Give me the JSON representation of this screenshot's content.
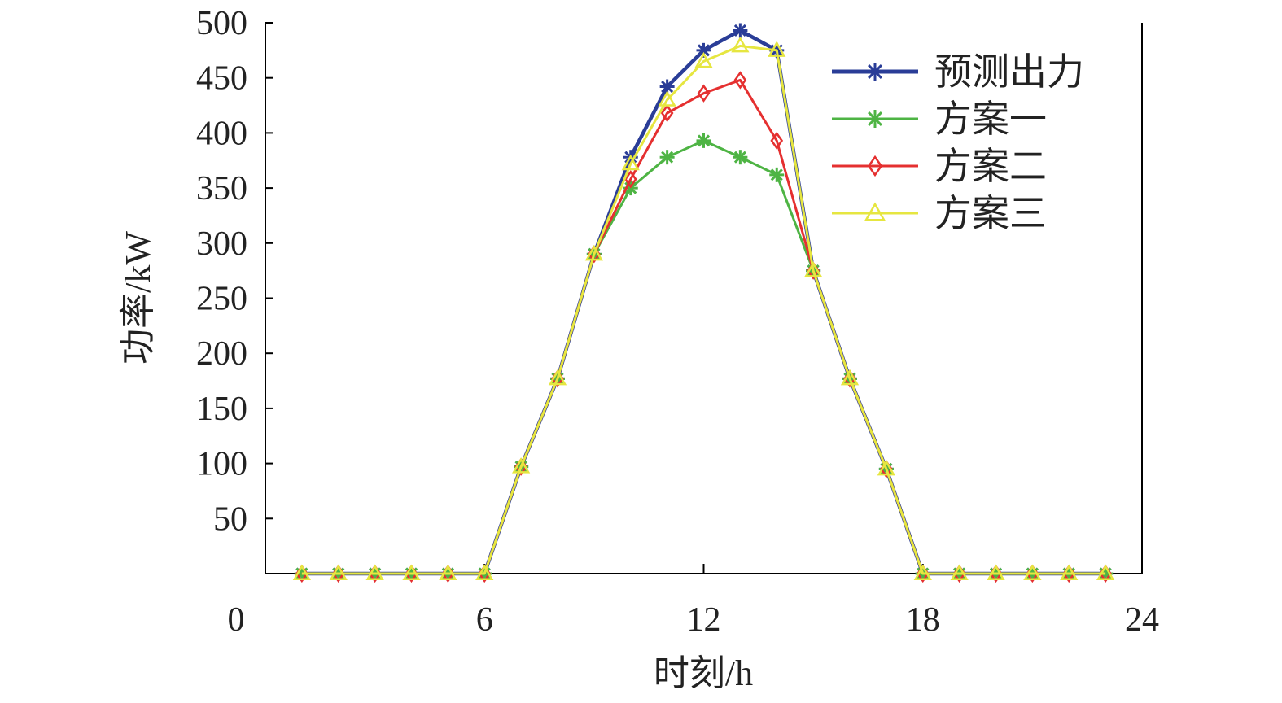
{
  "chart_data": {
    "type": "line",
    "title": "",
    "xlabel": "时刻/h",
    "ylabel": "功率/kW",
    "xlim": [
      0,
      24
    ],
    "ylim": [
      0,
      500
    ],
    "xticks": [
      0,
      6,
      12,
      18,
      24
    ],
    "yticks": [
      50,
      100,
      150,
      200,
      250,
      300,
      350,
      400,
      450,
      500
    ],
    "grid": false,
    "legend": "top-right",
    "x": [
      1,
      2,
      3,
      4,
      5,
      6,
      7,
      8,
      9,
      10,
      11,
      12,
      13,
      14,
      15,
      16,
      17,
      18,
      19,
      20,
      21,
      22,
      23,
      24
    ],
    "series": [
      {
        "name": "预测出力",
        "color": "#2a3d97",
        "marker": "asterisk",
        "values": [
          0,
          0,
          0,
          0,
          0,
          0,
          97,
          177,
          290,
          378,
          442,
          475,
          493,
          475,
          275,
          177,
          95,
          0,
          0,
          0,
          0,
          0,
          0,
          0
        ]
      },
      {
        "name": "方案一",
        "color": "#4eb444",
        "marker": "asterisk",
        "values": [
          0,
          0,
          0,
          0,
          0,
          0,
          97,
          177,
          290,
          350,
          378,
          393,
          378,
          362,
          275,
          177,
          95,
          0,
          0,
          0,
          0,
          0,
          0,
          0
        ]
      },
      {
        "name": "方案二",
        "color": "#e53030",
        "marker": "diamond",
        "values": [
          0,
          0,
          0,
          0,
          0,
          0,
          97,
          177,
          290,
          358,
          418,
          436,
          448,
          393,
          275,
          177,
          95,
          0,
          0,
          0,
          0,
          0,
          0,
          0
        ]
      },
      {
        "name": "方案三",
        "color": "#e6e640",
        "marker": "triangle",
        "values": [
          0,
          0,
          0,
          0,
          0,
          0,
          97,
          177,
          290,
          372,
          430,
          465,
          479,
          475,
          275,
          177,
          95,
          0,
          0,
          0,
          0,
          0,
          0,
          0
        ]
      }
    ]
  }
}
